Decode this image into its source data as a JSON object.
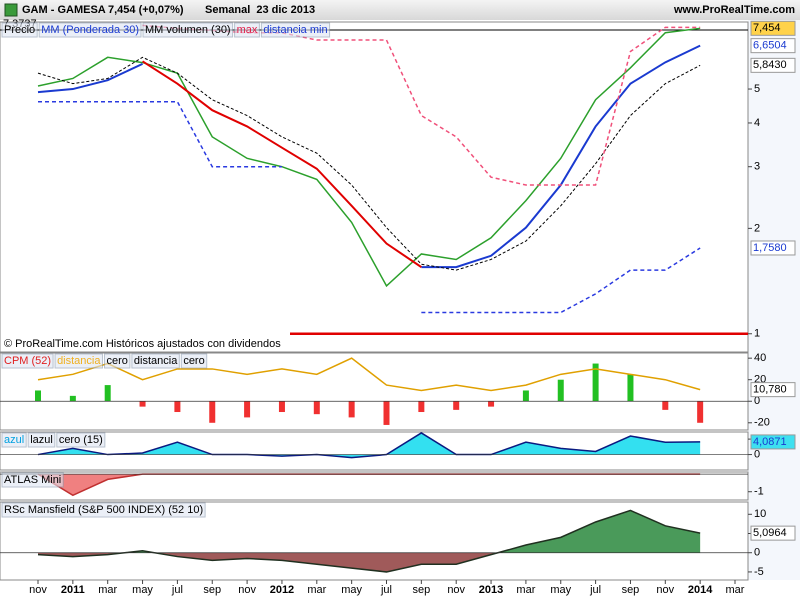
{
  "header": {
    "title": "GAM - GAMESA",
    "quote": "7,454 (+0,07%)",
    "period": "Semanal  23 dic 2013",
    "site": "www.ProRealTime.com"
  },
  "chart_data": [
    {
      "type": "line",
      "log": true,
      "note": "© ProRealTime.com  Históricos ajustados con dividendos",
      "categories": [
        "nov",
        "2011",
        "mar",
        "may",
        "jul",
        "sep",
        "nov",
        "2012",
        "mar",
        "may",
        "jul",
        "sep",
        "nov",
        "2013",
        "mar",
        "may",
        "jul",
        "sep",
        "nov",
        "2014",
        "mar"
      ],
      "ylim": [
        0.887,
        7.77
      ],
      "yticks": [
        1,
        2,
        3,
        4,
        5
      ],
      "legend": [
        {
          "label": "Precio",
          "color": "#000000"
        },
        {
          "label": "MM (Ponderada 30)",
          "color": "#1a3ad0"
        },
        {
          "label": "MM volumen (30)",
          "color": "#000000"
        },
        {
          "label": "max",
          "color": "#e0204a"
        },
        {
          "label": "distancia min",
          "color": "#1a3ad0"
        }
      ],
      "hlines": [
        {
          "value": 7.3737,
          "label": "7,3737",
          "color": "#000000"
        },
        {
          "value": 1,
          "color": "#e00000"
        }
      ],
      "markers": [
        {
          "value": 7.454,
          "label": "7,454",
          "color": "#000000",
          "bg": "#ffd24a"
        },
        {
          "value": 6.6504,
          "label": "6,6504",
          "color": "#1a3ad0",
          "bg": "#ffffff"
        },
        {
          "value": 5.843,
          "label": "5,8430",
          "color": "#000000",
          "bg": "#ffffff"
        },
        {
          "value": 1.758,
          "label": "1,7580",
          "color": "#1a3ad0",
          "bg": "#ffffff"
        }
      ],
      "series": [
        {
          "color": "#2ca02c",
          "width": 1.5,
          "values": [
            5.1,
            5.36,
            6.16,
            5.95,
            5.55,
            3.65,
            3.17,
            3.0,
            2.76,
            2.08,
            1.37,
            1.69,
            1.63,
            1.88,
            2.4,
            3.17,
            4.66,
            5.75,
            7.24,
            7.454,
            null
          ]
        },
        {
          "color": "#1a3ad0",
          "width": 2,
          "values": [
            4.9,
            5.0,
            5.3,
            5.9,
            null,
            null,
            null,
            null,
            null,
            null,
            null,
            1.55,
            1.55,
            1.67,
            2.01,
            2.66,
            3.91,
            5.18,
            5.96,
            6.6504,
            null
          ]
        },
        {
          "color": "#e00000",
          "width": 2,
          "values": [
            null,
            null,
            null,
            6.0,
            5.18,
            4.35,
            3.91,
            3.4,
            2.96,
            2.32,
            1.81,
            1.55,
            null,
            null,
            null,
            null,
            null,
            null,
            null,
            null,
            null
          ]
        },
        {
          "color": "#000000",
          "width": 1,
          "dash": "3,2",
          "values": [
            5.55,
            5.18,
            5.36,
            6.16,
            5.55,
            4.66,
            4.2,
            3.65,
            3.28,
            2.66,
            2.01,
            1.58,
            1.52,
            1.63,
            1.84,
            2.32,
            3.06,
            4.2,
            5.18,
            5.843,
            null
          ]
        },
        {
          "color": "#f0507a",
          "width": 1.5,
          "dash": "4,3",
          "values": [
            null,
            null,
            null,
            7.6,
            7.45,
            7.35,
            7.24,
            7.24,
            6.9,
            6.9,
            6.9,
            4.2,
            3.65,
            2.8,
            2.66,
            2.66,
            2.66,
            6.4,
            7.5,
            7.5,
            null
          ]
        },
        {
          "color": "#2a3ae0",
          "width": 1.5,
          "dash": "4,3",
          "values": [
            4.6,
            4.6,
            4.6,
            4.6,
            4.6,
            3.0,
            3.0,
            3.0,
            null,
            null,
            null,
            1.15,
            1.15,
            1.15,
            1.15,
            1.15,
            1.3,
            1.52,
            1.52,
            1.758,
            null
          ]
        }
      ]
    },
    {
      "type": "bar",
      "ylim": [
        -26.7,
        44.8
      ],
      "yticks": [
        -20,
        0,
        20,
        40
      ],
      "legend": [
        {
          "label": "CPM (52)",
          "color": "#e02020"
        },
        {
          "label": "distancia",
          "color": "#f0b020"
        },
        {
          "label": "cero",
          "color": "#000000"
        },
        {
          "label": "distancia",
          "color": "#000000"
        },
        {
          "label": "cero",
          "color": "#000000"
        }
      ],
      "markers": [
        {
          "value": 10.78,
          "label": "10,780",
          "color": "#000000",
          "bg": "#ffffff"
        }
      ],
      "series": [
        {
          "kind": "bar",
          "pos": "#22c022",
          "neg": "#f03030",
          "values": [
            10,
            5,
            15,
            -5,
            -10,
            -20,
            -15,
            -10,
            -12,
            -15,
            -22,
            -10,
            -8,
            -5,
            10,
            20,
            35,
            25,
            -8,
            -20,
            null
          ]
        },
        {
          "kind": "line",
          "color": "#e0a000",
          "width": 1.5,
          "values": [
            20,
            25,
            35,
            20,
            30,
            30,
            25,
            30,
            25,
            40,
            15,
            10,
            15,
            10,
            15,
            25,
            30,
            25,
            20,
            10.78,
            null
          ]
        }
      ]
    },
    {
      "type": "area",
      "ylim": [
        -5,
        7.3
      ],
      "yticks": [
        0,
        5
      ],
      "legend": [
        {
          "label": "azul",
          "color": "#00a0e0"
        },
        {
          "label": "lazul",
          "color": "#000000"
        },
        {
          "label": "cero (15)",
          "color": "#000000"
        }
      ],
      "markers": [
        {
          "value": 4.0871,
          "label": "4,0871",
          "color": "#1a3ad0",
          "bg": "#3ee0f0"
        }
      ],
      "series": [
        {
          "kind": "area",
          "pos": "#33e0f0",
          "neg": "#33e0f0",
          "color": "#0a1a80",
          "values": [
            0,
            2,
            0,
            0.5,
            4,
            0,
            0,
            -0.5,
            0,
            -1,
            0,
            7,
            0,
            0,
            4,
            2,
            1,
            6,
            4,
            4.0871,
            null
          ]
        }
      ]
    },
    {
      "type": "area",
      "ylim": [
        -1.47,
        0.12
      ],
      "yticks": [
        -1
      ],
      "legend": [
        {
          "label": "ATLAS Mini",
          "color": "#000000"
        }
      ],
      "series": [
        {
          "kind": "area",
          "pos": "#f08080",
          "neg": "#f08080",
          "color": "#c03030",
          "values": [
            0,
            -1.2,
            -0.3,
            0,
            0,
            0,
            0,
            0,
            0,
            0,
            0,
            0,
            0,
            0,
            0,
            0,
            0,
            0,
            0,
            0,
            null
          ]
        }
      ]
    },
    {
      "type": "area",
      "ylim": [
        -7.1,
        13.2
      ],
      "yticks": [
        -5,
        0,
        5,
        10
      ],
      "legend": [
        {
          "label": "RSc Mansfield (S&P 500 INDEX) (52 10)",
          "color": "#000000"
        }
      ],
      "markers": [
        {
          "value": 5.0964,
          "label": "5,0964",
          "color": "#000000",
          "bg": "#ffffff"
        }
      ],
      "series": [
        {
          "kind": "area",
          "pos": "#4a9a5a",
          "neg": "#a05a5a",
          "color": "#203020",
          "values": [
            -0.5,
            -1,
            -0.5,
            0.5,
            -1,
            -2,
            -1.5,
            -2,
            -3,
            -4,
            -5,
            -3,
            -3,
            -0.5,
            2,
            4,
            8,
            11,
            7,
            5.0964,
            null
          ]
        }
      ]
    }
  ]
}
